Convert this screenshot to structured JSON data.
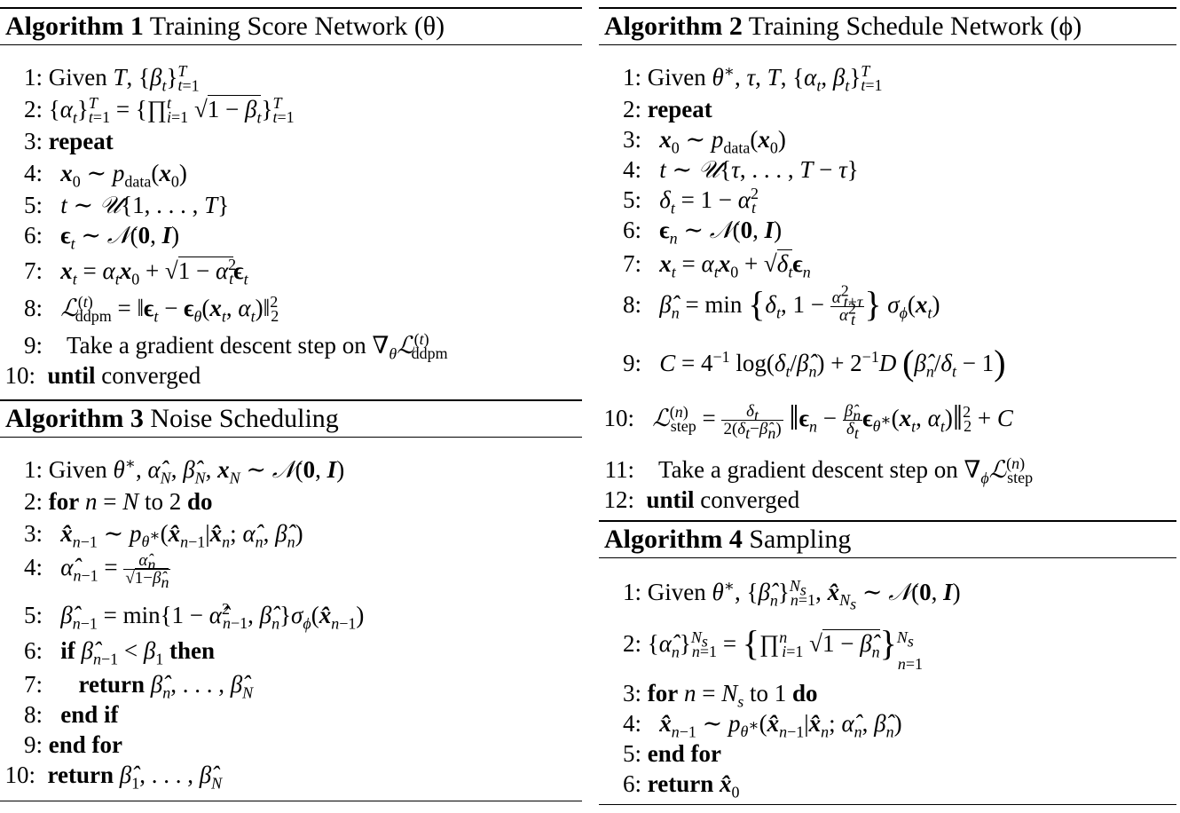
{
  "algorithms": {
    "a1": {
      "number": "Algorithm 1",
      "title": "Training Score Network (θ)"
    },
    "a2": {
      "number": "Algorithm 2",
      "title": "Training Schedule Network (ϕ)"
    },
    "a3": {
      "number": "Algorithm 3",
      "title": "Noise Scheduling"
    },
    "a4": {
      "number": "Algorithm 4",
      "title": "Sampling"
    }
  },
  "keywords": {
    "repeat": "repeat",
    "until": "until",
    "converged": "converged",
    "for": "for",
    "do": "do",
    "to": "to",
    "if": "if",
    "then": "then",
    "return": "return",
    "end_if": "end if",
    "end_for": "end for",
    "given": "Given",
    "take_step": "Take a gradient descent step on"
  }
}
